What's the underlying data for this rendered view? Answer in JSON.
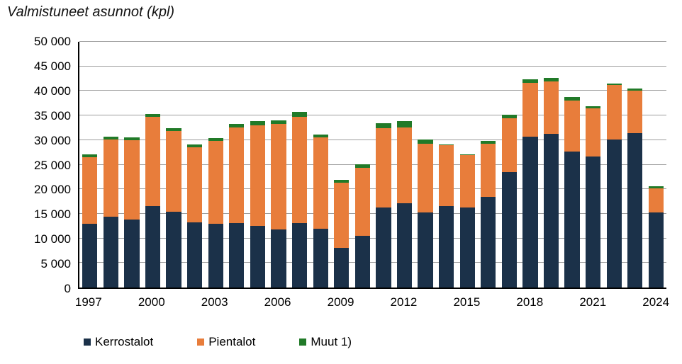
{
  "title": "Valmistuneet asunnot (kpl)",
  "chart_data": {
    "type": "bar",
    "stacked": true,
    "title": "Valmistuneet asunnot (kpl)",
    "xlabel": "",
    "ylabel": "",
    "ylim": [
      0,
      50000
    ],
    "ytick_step": 5000,
    "grid": "horizontal",
    "legend_position": "bottom",
    "categories": [
      "1997",
      "1998",
      "1999",
      "2000",
      "2001",
      "2002",
      "2003",
      "2004",
      "2005",
      "2006",
      "2007",
      "2008",
      "2009",
      "2010",
      "2011",
      "2012",
      "2013",
      "2014",
      "2015",
      "2016",
      "2017",
      "2018",
      "2019",
      "2020",
      "2021",
      "2022",
      "2023",
      "2024"
    ],
    "series": [
      {
        "name": "Kerrostalot",
        "color": "#1B3149",
        "values": [
          13000,
          14400,
          13900,
          16600,
          15400,
          13300,
          13000,
          13100,
          12600,
          11800,
          13100,
          11900,
          8000,
          10500,
          16300,
          17100,
          15300,
          16600,
          16300,
          18500,
          23500,
          30700,
          31300,
          27700,
          26600,
          30100,
          31400,
          15300
        ]
      },
      {
        "name": "Pientalot",
        "color": "#E87D3B",
        "values": [
          13500,
          15700,
          16100,
          18100,
          16400,
          15300,
          16900,
          19500,
          20400,
          21500,
          21700,
          18700,
          13300,
          13900,
          16100,
          15400,
          14000,
          12300,
          10600,
          10800,
          10900,
          11000,
          10700,
          10400,
          9900,
          11100,
          8600,
          4850
        ]
      },
      {
        "name": "Muut 1)",
        "color": "#217A28",
        "values": [
          600,
          600,
          600,
          600,
          600,
          550,
          550,
          650,
          800,
          650,
          900,
          600,
          650,
          650,
          1000,
          1300,
          800,
          150,
          250,
          600,
          700,
          700,
          700,
          600,
          450,
          250,
          500,
          500
        ]
      }
    ],
    "ytick_labels": [
      "0",
      "5 000",
      "10 000",
      "15 000",
      "20 000",
      "25 000",
      "30 000",
      "35 000",
      "40 000",
      "45 000",
      "50 000"
    ],
    "x_tick_labels": [
      "1997",
      "2000",
      "2003",
      "2006",
      "2009",
      "2012",
      "2015",
      "2018",
      "2021",
      "2024"
    ]
  },
  "colors": {
    "axis": "#000000",
    "gridline": "#9d9d9d",
    "background": "#ffffff"
  }
}
